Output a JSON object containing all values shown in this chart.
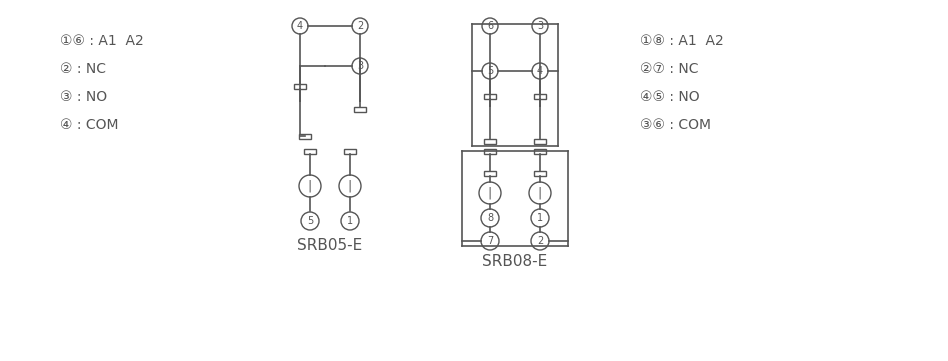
{
  "bg_color": "#ffffff",
  "line_color": "#555555",
  "text_color": "#555555",
  "title_srb05": "SRB05-E",
  "title_srb08": "SRB08-E",
  "legend_srb05": [
    "①⑥ : A1  A2",
    "② : NC",
    "③ : NO",
    "④ : COM"
  ],
  "legend_srb08": [
    "①⑧ : A1  A2",
    "②⑦ : NC",
    "④⑤ : NO",
    "③⑥ : COM"
  ]
}
